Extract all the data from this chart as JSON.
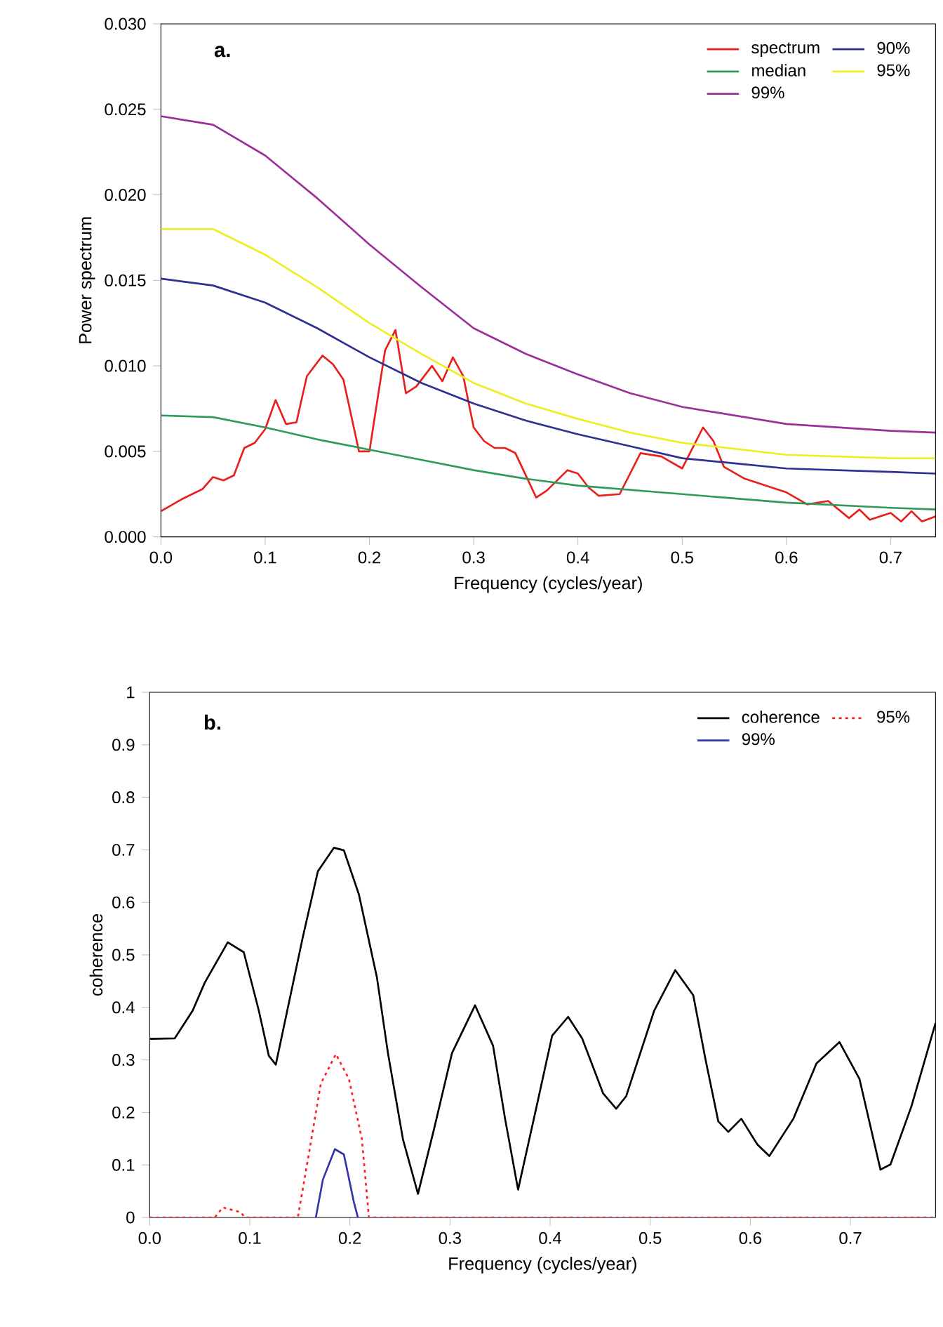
{
  "chart_data": [
    {
      "type": "line",
      "title": "a.",
      "xlabel": "Frequency (cycles/year)",
      "ylabel": "Power spectrum",
      "xlim": [
        0,
        0.743
      ],
      "ylim": [
        0,
        0.03
      ],
      "xticks": [
        {
          "value": 0,
          "label": "0.0"
        },
        0.1,
        0.2,
        0.3,
        0.4,
        0.5,
        0.6,
        0.7
      ],
      "yticks": [
        {
          "value": 0,
          "label": "0.000"
        },
        {
          "value": 0.005,
          "label": "0.005"
        },
        {
          "value": 0.01,
          "label": "0.010"
        },
        {
          "value": 0.015,
          "label": "0.015"
        },
        {
          "value": 0.02,
          "label": "0.020"
        },
        {
          "value": 0.025,
          "label": "0.025"
        },
        {
          "value": 0.03,
          "label": "0.030"
        }
      ],
      "legend": "top right",
      "grid": false,
      "marker": "none",
      "series": [
        {
          "name": "spectrum",
          "color": "#e8201c",
          "line_style": "solid",
          "x": [
            0,
            0.02,
            0.04,
            0.05,
            0.06,
            0.07,
            0.08,
            0.09,
            0.1,
            0.11,
            0.12,
            0.13,
            0.14,
            0.155,
            0.165,
            0.175,
            0.19,
            0.2,
            0.215,
            0.225,
            0.235,
            0.245,
            0.26,
            0.27,
            0.28,
            0.29,
            0.3,
            0.31,
            0.32,
            0.33,
            0.34,
            0.36,
            0.37,
            0.39,
            0.4,
            0.41,
            0.42,
            0.44,
            0.46,
            0.48,
            0.5,
            0.52,
            0.53,
            0.54,
            0.56,
            0.58,
            0.6,
            0.62,
            0.64,
            0.66,
            0.67,
            0.68,
            0.7,
            0.71,
            0.72,
            0.73,
            0.743
          ],
          "values": [
            0.0015,
            0.0022,
            0.0028,
            0.0035,
            0.0033,
            0.0036,
            0.0052,
            0.0055,
            0.0063,
            0.008,
            0.0066,
            0.0067,
            0.0094,
            0.0106,
            0.0101,
            0.0092,
            0.005,
            0.005,
            0.0109,
            0.0121,
            0.0084,
            0.0088,
            0.01,
            0.0091,
            0.0105,
            0.0094,
            0.0064,
            0.0056,
            0.0052,
            0.0052,
            0.0049,
            0.0023,
            0.0027,
            0.0039,
            0.0037,
            0.0029,
            0.0024,
            0.0025,
            0.0049,
            0.0047,
            0.004,
            0.0064,
            0.0056,
            0.0041,
            0.0034,
            0.003,
            0.0026,
            0.0019,
            0.0021,
            0.0011,
            0.0016,
            0.001,
            0.0014,
            0.0009,
            0.0015,
            0.0009,
            0.0012
          ]
        },
        {
          "name": "90%",
          "color": "#2e3192",
          "line_style": "solid",
          "x": [
            0,
            0.05,
            0.1,
            0.15,
            0.2,
            0.25,
            0.3,
            0.35,
            0.4,
            0.45,
            0.5,
            0.55,
            0.6,
            0.7,
            0.743
          ],
          "values": [
            0.0151,
            0.0147,
            0.0137,
            0.0122,
            0.0105,
            0.009,
            0.0078,
            0.0068,
            0.006,
            0.0053,
            0.0046,
            0.0043,
            0.004,
            0.0038,
            0.0037
          ]
        },
        {
          "name": "median",
          "color": "#2e9b5a",
          "line_style": "solid",
          "x": [
            0,
            0.05,
            0.1,
            0.15,
            0.2,
            0.25,
            0.3,
            0.35,
            0.4,
            0.5,
            0.6,
            0.7,
            0.743
          ],
          "values": [
            0.0071,
            0.007,
            0.0064,
            0.0057,
            0.0051,
            0.0045,
            0.0039,
            0.0034,
            0.003,
            0.0025,
            0.002,
            0.0017,
            0.0016
          ]
        },
        {
          "name": "95%",
          "color": "#eeee22",
          "line_style": "solid",
          "x": [
            0,
            0.05,
            0.1,
            0.15,
            0.2,
            0.25,
            0.3,
            0.35,
            0.4,
            0.45,
            0.5,
            0.6,
            0.7,
            0.743
          ],
          "values": [
            0.018,
            0.018,
            0.0165,
            0.0146,
            0.0125,
            0.0107,
            0.009,
            0.0078,
            0.0069,
            0.0061,
            0.0055,
            0.0048,
            0.0046,
            0.0046
          ]
        },
        {
          "name": "99%",
          "color": "#9b309b",
          "line_style": "solid",
          "x": [
            0,
            0.05,
            0.1,
            0.15,
            0.2,
            0.25,
            0.3,
            0.35,
            0.4,
            0.45,
            0.5,
            0.6,
            0.7,
            0.743
          ],
          "values": [
            0.0246,
            0.0241,
            0.0223,
            0.0198,
            0.0171,
            0.0146,
            0.0122,
            0.0107,
            0.0095,
            0.0084,
            0.0076,
            0.0066,
            0.0062,
            0.0061
          ]
        }
      ]
    },
    {
      "type": "line",
      "title": "b.",
      "xlabel": "Frequency (cycles/year)",
      "ylabel": "coherence",
      "xlim": [
        0,
        0.785
      ],
      "ylim": [
        0,
        1
      ],
      "xticks": [
        {
          "value": 0,
          "label": "0.0"
        },
        0.1,
        0.2,
        0.3,
        0.4,
        0.5,
        0.6,
        0.7
      ],
      "yticks": [
        0,
        0.1,
        0.2,
        0.3,
        0.4,
        0.5,
        0.6,
        0.7,
        0.8,
        0.9,
        1
      ],
      "legend": "top right",
      "grid": false,
      "marker": "none",
      "series": [
        {
          "name": "coherence",
          "color": "#000000",
          "line_style": "solid",
          "x": [
            0,
            0.025,
            0.043,
            0.055,
            0.078,
            0.094,
            0.109,
            0.119,
            0.126,
            0.153,
            0.168,
            0.184,
            0.194,
            0.209,
            0.227,
            0.238,
            0.253,
            0.268,
            0.284,
            0.302,
            0.325,
            0.343,
            0.355,
            0.368,
            0.386,
            0.402,
            0.418,
            0.432,
            0.453,
            0.466,
            0.476,
            0.504,
            0.525,
            0.543,
            0.555,
            0.568,
            0.578,
            0.591,
            0.607,
            0.619,
            0.643,
            0.666,
            0.689,
            0.709,
            0.73,
            0.74,
            0.761,
            0.785
          ],
          "values": [
            0.34,
            0.341,
            0.394,
            0.447,
            0.524,
            0.505,
            0.394,
            0.308,
            0.291,
            0.534,
            0.659,
            0.704,
            0.699,
            0.615,
            0.457,
            0.313,
            0.149,
            0.045,
            0.168,
            0.313,
            0.404,
            0.327,
            0.188,
            0.053,
            0.207,
            0.346,
            0.382,
            0.341,
            0.236,
            0.207,
            0.231,
            0.394,
            0.471,
            0.423,
            0.303,
            0.183,
            0.163,
            0.188,
            0.139,
            0.117,
            0.188,
            0.293,
            0.334,
            0.264,
            0.091,
            0.101,
            0.212,
            0.37
          ]
        },
        {
          "name": "95%",
          "color": "#ff2020",
          "line_style": "dotted",
          "x": [
            0,
            0.065,
            0.073,
            0.091,
            0.095,
            0.148,
            0.158,
            0.171,
            0.186,
            0.199,
            0.212,
            0.219,
            0.785
          ],
          "values": [
            0,
            0,
            0.019,
            0.01,
            0,
            0,
            0.11,
            0.255,
            0.311,
            0.264,
            0.149,
            0,
            0
          ]
        },
        {
          "name": "99%",
          "color": "#3333aa",
          "line_style": "solid",
          "x": [
            0.166,
            0.173,
            0.185,
            0.194,
            0.204,
            0.208
          ],
          "values": [
            0,
            0.072,
            0.13,
            0.12,
            0.029,
            0
          ]
        }
      ]
    }
  ]
}
